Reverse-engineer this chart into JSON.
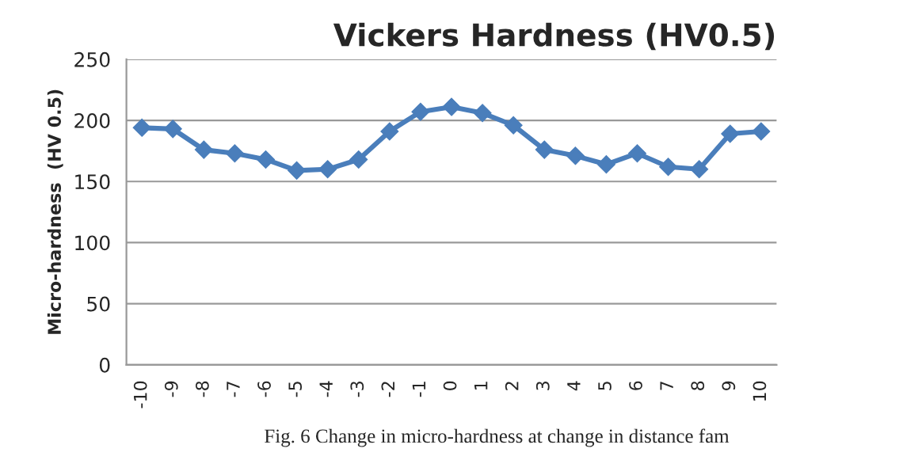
{
  "chart_data": {
    "type": "line",
    "title": "Vickers Hardness (HV0.5)",
    "ylabel": "Micro-hardness  (HV 0.5)",
    "categories": [
      "-10",
      "-9",
      "-8",
      "-7",
      "-6",
      "-5",
      "-4",
      "-3",
      "-2",
      "-1",
      "0",
      "1",
      "2",
      "3",
      "4",
      "5",
      "6",
      "7",
      "8",
      "9",
      "10"
    ],
    "series": [
      {
        "color": "#4a7ebb",
        "values": [
          194,
          193,
          176,
          173,
          168,
          159,
          160,
          168,
          191,
          207,
          211,
          206,
          196,
          176,
          171,
          164,
          173,
          162,
          160,
          189,
          191
        ]
      }
    ],
    "ylim": [
      0,
      250
    ],
    "yticks": [
      0,
      50,
      100,
      150,
      200,
      250
    ],
    "grid": "y",
    "marker": "diamond",
    "line_style": "solid",
    "annotations": [
      "Fig. 6 Change in micro-hardness at change in distance fam"
    ]
  }
}
